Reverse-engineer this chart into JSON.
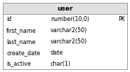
{
  "title": "user",
  "header_bg": "#e0e0e0",
  "body_bg": "#ffffff",
  "border_color": "#999999",
  "title_fontsize": 6.5,
  "row_fontsize": 5.8,
  "title_fontstyle": "bold",
  "rows": [
    {
      "col1": "id",
      "col2": "number(10,0)",
      "col3": "PK"
    },
    {
      "col1": "first_name",
      "col2": "varchar2(50)",
      "col3": ""
    },
    {
      "col1": "last_name",
      "col2": "varchar2(50)",
      "col3": ""
    },
    {
      "col1": "create_date",
      "col2": "date",
      "col3": ""
    },
    {
      "col1": "is_active",
      "col2": "char(1)",
      "col3": ""
    }
  ],
  "fig_width": 1.85,
  "fig_height": 1.03,
  "dpi": 100
}
